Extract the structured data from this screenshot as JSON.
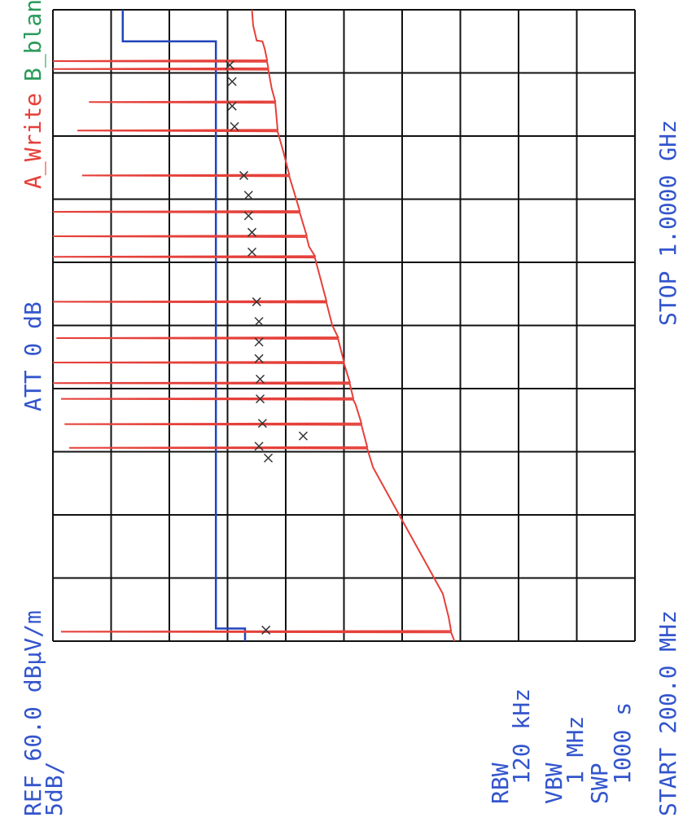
{
  "chart_data": {
    "type": "line",
    "orientation": "rotated",
    "xlim": [
      200,
      1000
    ],
    "ylim": [
      10,
      60
    ],
    "xticks": [
      200,
      280,
      360,
      440,
      520,
      600,
      680,
      760,
      840,
      920,
      1000
    ],
    "yticks": [
      10,
      15,
      20,
      25,
      30,
      35,
      40,
      45,
      50,
      55,
      60
    ],
    "grid": true,
    "ref_label": "REF 60.0 dBµV/m",
    "scale_label": "5dB/",
    "att_label": "ATT 0 dB",
    "trace_b": "B_blank",
    "trace_b_color": "#2a9a5a",
    "start_label": "START 200.0 MHz",
    "stop_label": "STOP 1.0000 GHz",
    "settings": [
      "RBW",
      "120 kHz",
      "VBW",
      "1 MHz",
      "SWP",
      "1000 s"
    ],
    "series": [
      {
        "name": "A_Write",
        "color": "#e5403a",
        "x": [
          200,
          211,
          212,
          213,
          230,
          260,
          300,
          340,
          380,
          420,
          444,
          445,
          446,
          474,
          475,
          476,
          500,
          506,
          507,
          508,
          526,
          527,
          528,
          552,
          553,
          554,
          583,
          584,
          585,
          600,
          629,
          630,
          631,
          686,
          687,
          688,
          700,
          712,
          713,
          714,
          743,
          744,
          745,
          770,
          789,
          790,
          791,
          820,
          846,
          847,
          848,
          882,
          883,
          884,
          900,
          924,
          925,
          926,
          934,
          935,
          936,
          950,
          960,
          961,
          980,
          1000
        ],
        "values": [
          25.5,
          25.8,
          59.3,
          25.8,
          26,
          26.5,
          28,
          29.5,
          31,
          32.5,
          33,
          58.6,
          33,
          33.5,
          59,
          33.5,
          34,
          34.2,
          59.3,
          34.2,
          34.5,
          60,
          34.5,
          35,
          60,
          35,
          35.5,
          59.7,
          35.5,
          36,
          36.5,
          60,
          36.5,
          37.5,
          60,
          37.5,
          38,
          38.2,
          60,
          38.2,
          38.8,
          60,
          38.8,
          39.3,
          39.7,
          57.5,
          39.7,
          40.2,
          40.7,
          57.9,
          40.7,
          40.9,
          56.9,
          40.9,
          41.2,
          41.5,
          60,
          41.5,
          41.6,
          60,
          41.6,
          41.8,
          42,
          42.5,
          42.8,
          42.9
        ]
      }
    ],
    "limit": {
      "color": "#2244bb",
      "x": [
        200,
        216,
        216,
        960,
        960,
        1000
      ],
      "values": [
        43.5,
        43.5,
        46,
        46,
        54,
        54
      ]
    },
    "markers": {
      "color": "#333333",
      "x": [
        214,
        432,
        447,
        460,
        476,
        507,
        532,
        558,
        579,
        605,
        630,
        693,
        718,
        739,
        765,
        790,
        852,
        878,
        909,
        930
      ],
      "values": [
        41.7,
        41.5,
        42.3,
        38.5,
        42,
        42.2,
        42.2,
        42.3,
        42.3,
        42.3,
        42.5,
        42.9,
        42.9,
        43.2,
        43.2,
        43.6,
        44.4,
        44.6,
        44.6,
        44.8
      ]
    }
  }
}
